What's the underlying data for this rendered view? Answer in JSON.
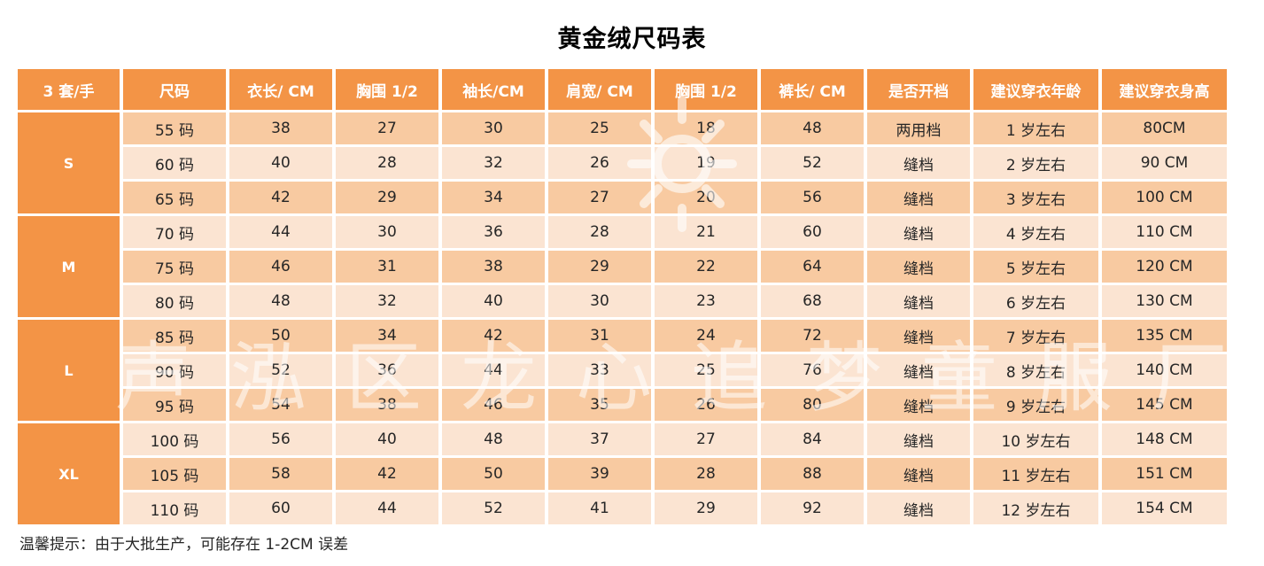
{
  "title": "黄金绒尺码表",
  "watermark": "声泓区龙心追梦童服厂",
  "headers": [
    "3 套/手",
    "尺码",
    "衣长/ CM",
    "胸围 1/2",
    "袖长/CM",
    "肩宽/ CM",
    "胸围 1/2",
    "裤长/ CM",
    "是否开档",
    "建议穿衣年龄",
    "建议穿衣身高"
  ],
  "groups": [
    {
      "label": "S",
      "rows": [
        [
          "55 码",
          "38",
          "27",
          "30",
          "25",
          "18",
          "48",
          "两用档",
          "1 岁左右",
          "80CM"
        ],
        [
          "60 码",
          "40",
          "28",
          "32",
          "26",
          "19",
          "52",
          "缝档",
          "2 岁左右",
          "90 CM"
        ],
        [
          "65 码",
          "42",
          "29",
          "34",
          "27",
          "20",
          "56",
          "缝档",
          "3 岁左右",
          "100 CM"
        ]
      ]
    },
    {
      "label": "M",
      "rows": [
        [
          "70 码",
          "44",
          "30",
          "36",
          "28",
          "21",
          "60",
          "缝档",
          "4 岁左右",
          "110 CM"
        ],
        [
          "75 码",
          "46",
          "31",
          "38",
          "29",
          "22",
          "64",
          "缝档",
          "5 岁左右",
          "120 CM"
        ],
        [
          "80 码",
          "48",
          "32",
          "40",
          "30",
          "23",
          "68",
          "缝档",
          "6 岁左右",
          "130 CM"
        ]
      ]
    },
    {
      "label": "L",
      "rows": [
        [
          "85 码",
          "50",
          "34",
          "42",
          "31",
          "24",
          "72",
          "缝档",
          "7 岁左右",
          "135 CM"
        ],
        [
          "90 码",
          "52",
          "36",
          "44",
          "33",
          "25",
          "76",
          "缝档",
          "8 岁左右",
          "140 CM"
        ],
        [
          "95 码",
          "54",
          "38",
          "46",
          "35",
          "26",
          "80",
          "缝档",
          "9 岁左右",
          "145 CM"
        ]
      ]
    },
    {
      "label": "XL",
      "rows": [
        [
          "100 码",
          "56",
          "40",
          "48",
          "37",
          "27",
          "84",
          "缝档",
          "10 岁左右",
          "148 CM"
        ],
        [
          "105 码",
          "58",
          "42",
          "50",
          "39",
          "28",
          "88",
          "缝档",
          "11 岁左右",
          "151 CM"
        ],
        [
          "110 码",
          "60",
          "44",
          "52",
          "41",
          "29",
          "92",
          "缝档",
          "12 岁左右",
          "154 CM"
        ]
      ]
    }
  ],
  "footnote": "温馨提示：由于大批生产，可能存在 1-2CM 误差",
  "colors": {
    "header": "#f39446",
    "row_dark": "#f8caa1",
    "row_light": "#fbe4d2",
    "watermark": "#ffffff"
  },
  "icons": [
    "sun-watermark-icon"
  ]
}
